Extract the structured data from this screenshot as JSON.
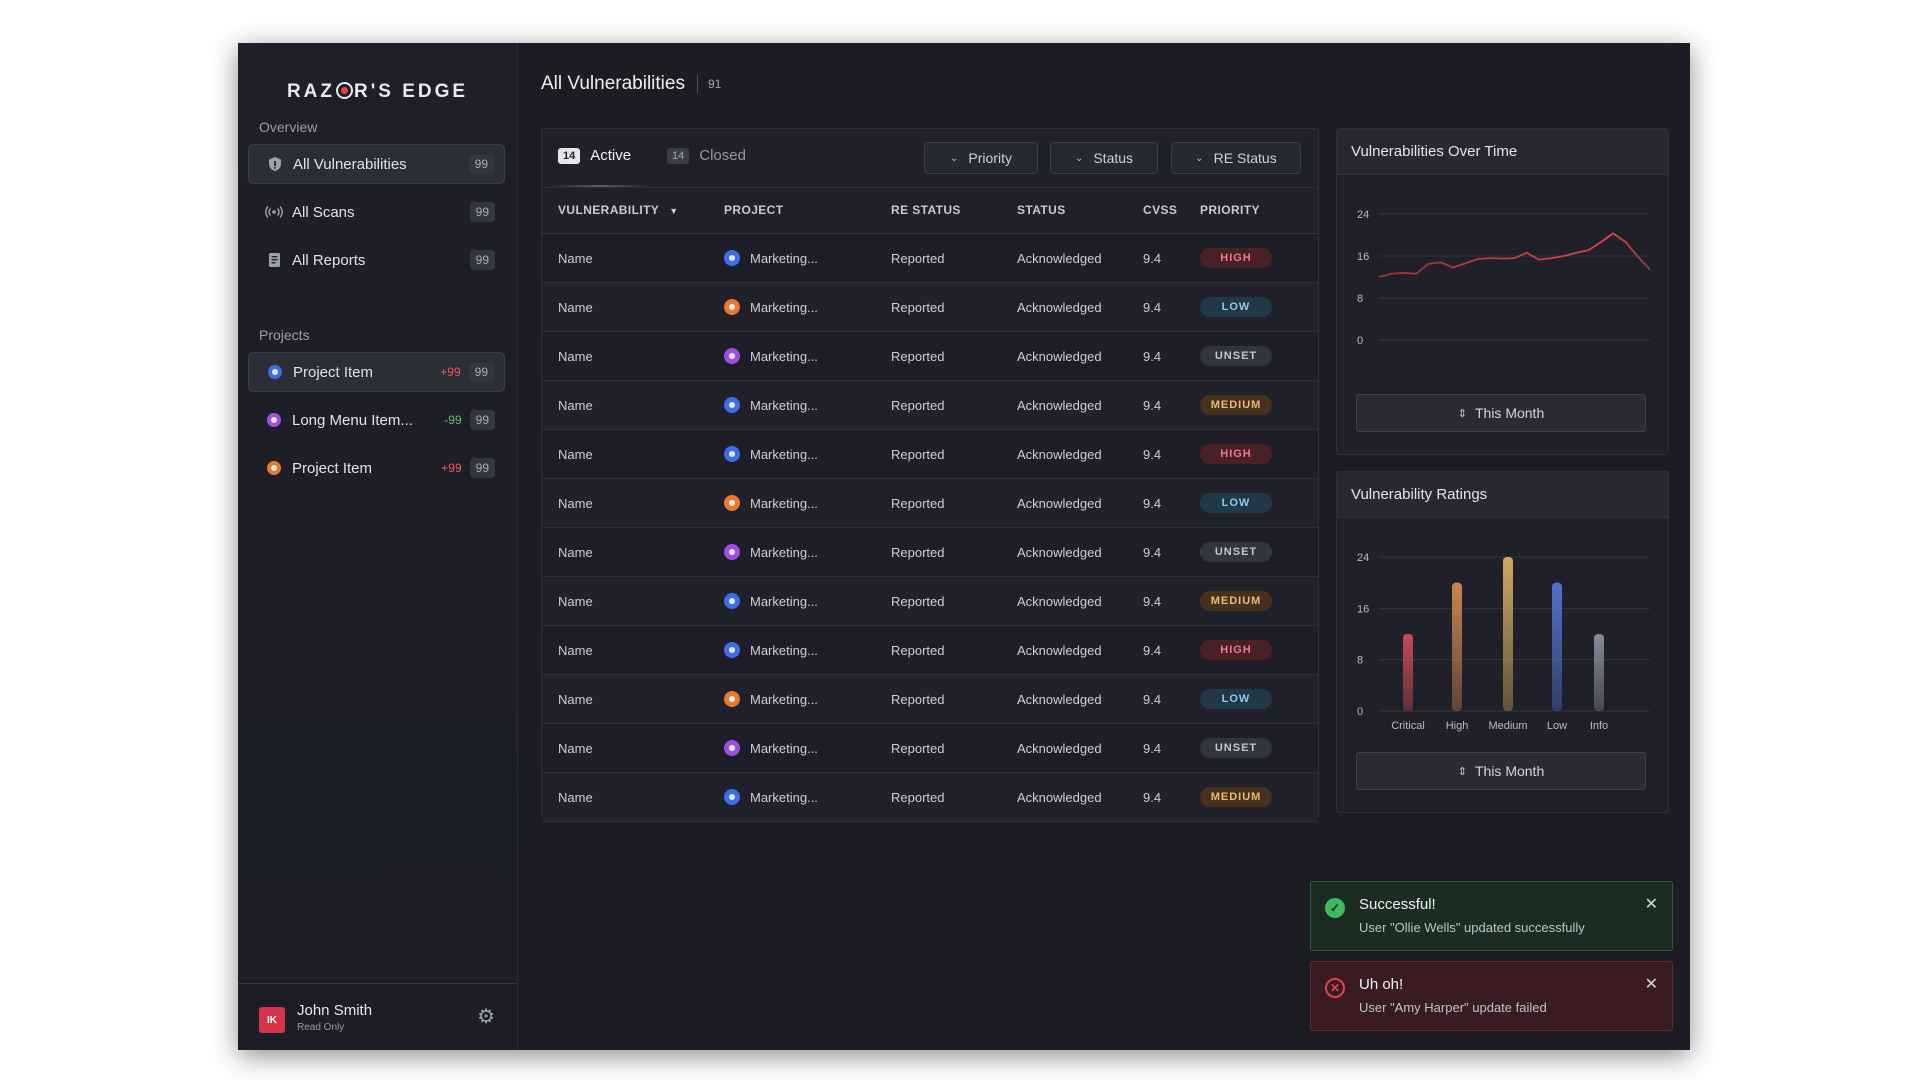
{
  "brand": {
    "logo_pre": "RAZ",
    "logo_post": "R'S EDGE"
  },
  "sidebar": {
    "overview_title": "Overview",
    "nav": [
      {
        "label": "All Vulnerabilities",
        "count": "99",
        "icon": "shield-icon"
      },
      {
        "label": "All Scans",
        "count": "99",
        "icon": "radio-waves-icon"
      },
      {
        "label": "All Reports",
        "count": "99",
        "icon": "document-icon"
      }
    ],
    "projects_title": "Projects",
    "projects": [
      {
        "label": "Project Item",
        "delta": "+99",
        "count": "99",
        "color": "#3d6ee8"
      },
      {
        "label": "Long Menu Item...",
        "delta": "-99",
        "count": "99",
        "color": "#a04fe0"
      },
      {
        "label": "Project Item",
        "delta": "+99",
        "count": "99",
        "color": "#e8792e"
      }
    ],
    "user": {
      "initials": "IK",
      "name": "John Smith",
      "role": "Read Only"
    }
  },
  "header": {
    "title": "All Vulnerabilities",
    "count": "91"
  },
  "tabs": {
    "active": {
      "count": "14",
      "label": "Active"
    },
    "closed": {
      "count": "14",
      "label": "Closed"
    }
  },
  "filters": {
    "priority": "Priority",
    "status": "Status",
    "re_status": "RE Status"
  },
  "table": {
    "columns": [
      "VULNERABILITY",
      "PROJECT",
      "RE STATUS",
      "STATUS",
      "CVSS",
      "PRIORITY"
    ],
    "rows": [
      {
        "name": "Name",
        "project": "Marketing...",
        "project_color": "blue",
        "re_status": "Reported",
        "status": "Acknowledged",
        "cvss": "9.4",
        "priority": "HIGH"
      },
      {
        "name": "Name",
        "project": "Marketing...",
        "project_color": "orange",
        "re_status": "Reported",
        "status": "Acknowledged",
        "cvss": "9.4",
        "priority": "LOW"
      },
      {
        "name": "Name",
        "project": "Marketing...",
        "project_color": "purple",
        "re_status": "Reported",
        "status": "Acknowledged",
        "cvss": "9.4",
        "priority": "UNSET"
      },
      {
        "name": "Name",
        "project": "Marketing...",
        "project_color": "blue",
        "re_status": "Reported",
        "status": "Acknowledged",
        "cvss": "9.4",
        "priority": "MEDIUM"
      },
      {
        "name": "Name",
        "project": "Marketing...",
        "project_color": "blue",
        "re_status": "Reported",
        "status": "Acknowledged",
        "cvss": "9.4",
        "priority": "HIGH"
      },
      {
        "name": "Name",
        "project": "Marketing...",
        "project_color": "orange",
        "re_status": "Reported",
        "status": "Acknowledged",
        "cvss": "9.4",
        "priority": "LOW"
      },
      {
        "name": "Name",
        "project": "Marketing...",
        "project_color": "purple",
        "re_status": "Reported",
        "status": "Acknowledged",
        "cvss": "9.4",
        "priority": "UNSET"
      },
      {
        "name": "Name",
        "project": "Marketing...",
        "project_color": "blue",
        "re_status": "Reported",
        "status": "Acknowledged",
        "cvss": "9.4",
        "priority": "MEDIUM"
      },
      {
        "name": "Name",
        "project": "Marketing...",
        "project_color": "blue",
        "re_status": "Reported",
        "status": "Acknowledged",
        "cvss": "9.4",
        "priority": "HIGH"
      },
      {
        "name": "Name",
        "project": "Marketing...",
        "project_color": "orange",
        "re_status": "Reported",
        "status": "Acknowledged",
        "cvss": "9.4",
        "priority": "LOW"
      },
      {
        "name": "Name",
        "project": "Marketing...",
        "project_color": "purple",
        "re_status": "Reported",
        "status": "Acknowledged",
        "cvss": "9.4",
        "priority": "UNSET"
      },
      {
        "name": "Name",
        "project": "Marketing...",
        "project_color": "blue",
        "re_status": "Reported",
        "status": "Acknowledged",
        "cvss": "9.4",
        "priority": "MEDIUM"
      }
    ]
  },
  "cards": {
    "over_time": {
      "title": "Vulnerabilities Over Time",
      "button": "This Month"
    },
    "ratings": {
      "title": "Vulnerability Ratings",
      "button": "This Month"
    }
  },
  "chart_data": [
    {
      "type": "line",
      "title": "Vulnerabilities Over Time",
      "ylim": [
        0,
        24
      ],
      "yticks": [
        "24",
        "16",
        "8",
        "0"
      ],
      "color": "#e0474c",
      "series": [
        {
          "values": [
            12.0,
            12.6,
            12.8,
            12.6,
            14.5,
            14.8,
            13.8,
            14.6,
            15.4,
            15.6,
            15.5,
            15.6,
            16.6,
            15.3,
            15.6,
            16.0,
            16.6,
            17.1,
            18.6,
            20.3,
            18.7,
            15.9,
            13.4
          ]
        }
      ]
    },
    {
      "type": "bar",
      "title": "Vulnerability Ratings",
      "categories": [
        "Critical",
        "High",
        "Medium",
        "Low",
        "Info"
      ],
      "values": [
        12,
        20,
        24,
        20,
        12
      ],
      "colors": [
        "#d24b55",
        "#d48a4f",
        "#d9b064",
        "#5576d6",
        "#8d90a2"
      ],
      "ylim": [
        0,
        24
      ],
      "yticks": [
        "24",
        "16",
        "8",
        "0"
      ]
    }
  ],
  "toasts": [
    {
      "kind": "success",
      "title": "Successful!",
      "message": "User \"Ollie Wells\" updated successfully"
    },
    {
      "kind": "error",
      "title": "Uh oh!",
      "message": "User \"Amy Harper\" update failed"
    }
  ]
}
